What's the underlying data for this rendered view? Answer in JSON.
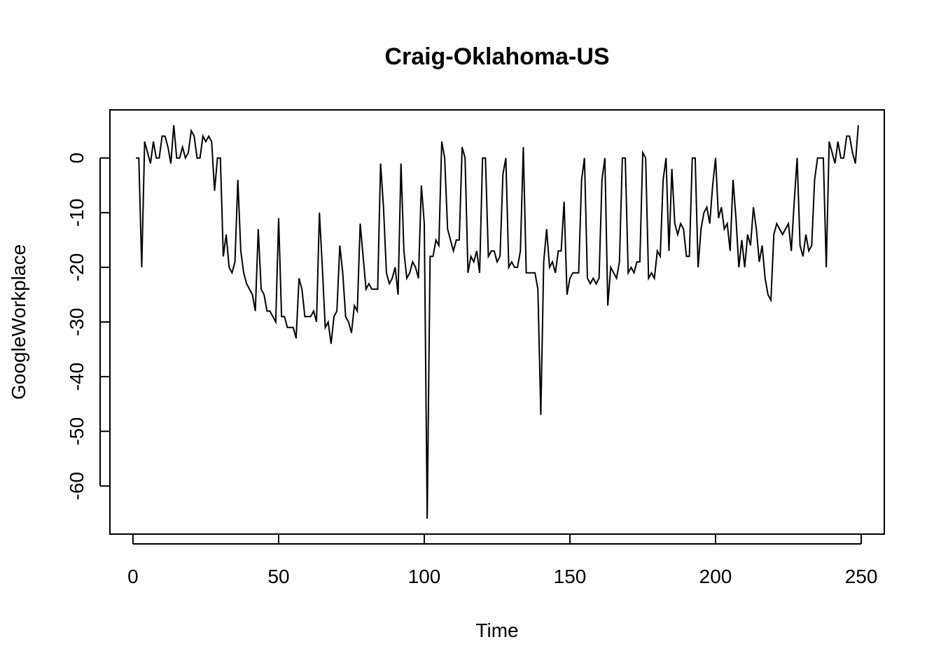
{
  "chart_data": {
    "type": "line",
    "title": "Craig-Oklahoma-US",
    "xlabel": "Time",
    "ylabel": "GoogleWorkplace",
    "xlim": [
      -7.92,
      257.92
    ],
    "ylim": [
      -68.8,
      8.8
    ],
    "xticks": [
      0,
      50,
      100,
      150,
      200,
      250
    ],
    "yticks": [
      0,
      -10,
      -20,
      -30,
      -40,
      -50,
      -60
    ],
    "series": [
      {
        "name": "GoogleWorkplace",
        "x_start": 1,
        "values": [
          0,
          0,
          -20,
          3,
          1,
          -1,
          3,
          0,
          0,
          4,
          4,
          2,
          -1,
          6,
          0,
          0,
          2,
          0,
          1,
          5,
          4,
          0,
          0,
          4,
          3,
          4,
          3,
          -6,
          0,
          0,
          -18,
          -14,
          -20,
          -21,
          -19,
          -4,
          -17,
          -21,
          -23,
          -24,
          -25,
          -28,
          -13,
          -24,
          -25,
          -28,
          -28,
          -29,
          -30,
          -11,
          -29,
          -29,
          -31,
          -31,
          -31,
          -33,
          -22,
          -24,
          -29,
          -29,
          -29,
          -28,
          -30,
          -10,
          -20,
          -31,
          -30,
          -34,
          -29,
          -28,
          -16,
          -21,
          -29,
          -30,
          -32,
          -27,
          -28,
          -12,
          -18,
          -24,
          -23,
          -24,
          -24,
          -24,
          -1,
          -9,
          -21,
          -23,
          -22,
          -20,
          -25,
          -1,
          -17,
          -22,
          -21,
          -19,
          -20,
          -22,
          -5,
          -12,
          -66,
          -18,
          -18,
          -15,
          -16,
          3,
          0,
          -13,
          -15,
          -17,
          -15,
          -15,
          2,
          0,
          -21,
          -18,
          -19,
          -17,
          -21,
          0,
          0,
          -18,
          -17,
          -17,
          -19,
          -18,
          -3,
          0,
          -20,
          -19,
          -20,
          -20,
          -17,
          2,
          -21,
          -21,
          -21,
          -21,
          -24,
          -47,
          -19,
          -13,
          -20,
          -19,
          -21,
          -17,
          -17,
          -8,
          -25,
          -22,
          -21,
          -21,
          -21,
          -4,
          0,
          -22,
          -23,
          -22,
          -23,
          -22,
          -4,
          0,
          -27,
          -20,
          -21,
          -22,
          -19,
          0,
          0,
          -21,
          -20,
          -21,
          -19,
          -19,
          1,
          0,
          -22,
          -21,
          -22,
          -17,
          -18,
          -4,
          0,
          -17,
          -2,
          -12,
          -14,
          -12,
          -13,
          -18,
          -18,
          0,
          0,
          -20,
          -13,
          -10,
          -9,
          -12,
          -5,
          0,
          -11,
          -9,
          -13,
          -12,
          -17,
          -4,
          -11,
          -20,
          -15,
          -20,
          -14,
          -16,
          -9,
          -13,
          -19,
          -16,
          -22,
          -25,
          -26,
          -14,
          -12,
          -13,
          -14,
          -13,
          -12,
          -17,
          -8,
          0,
          -16,
          -18,
          -14,
          -17,
          -16,
          -4,
          0,
          0,
          0,
          -20,
          3,
          1,
          -1,
          3,
          0,
          0,
          4,
          4,
          1,
          -1,
          6
        ]
      }
    ]
  }
}
